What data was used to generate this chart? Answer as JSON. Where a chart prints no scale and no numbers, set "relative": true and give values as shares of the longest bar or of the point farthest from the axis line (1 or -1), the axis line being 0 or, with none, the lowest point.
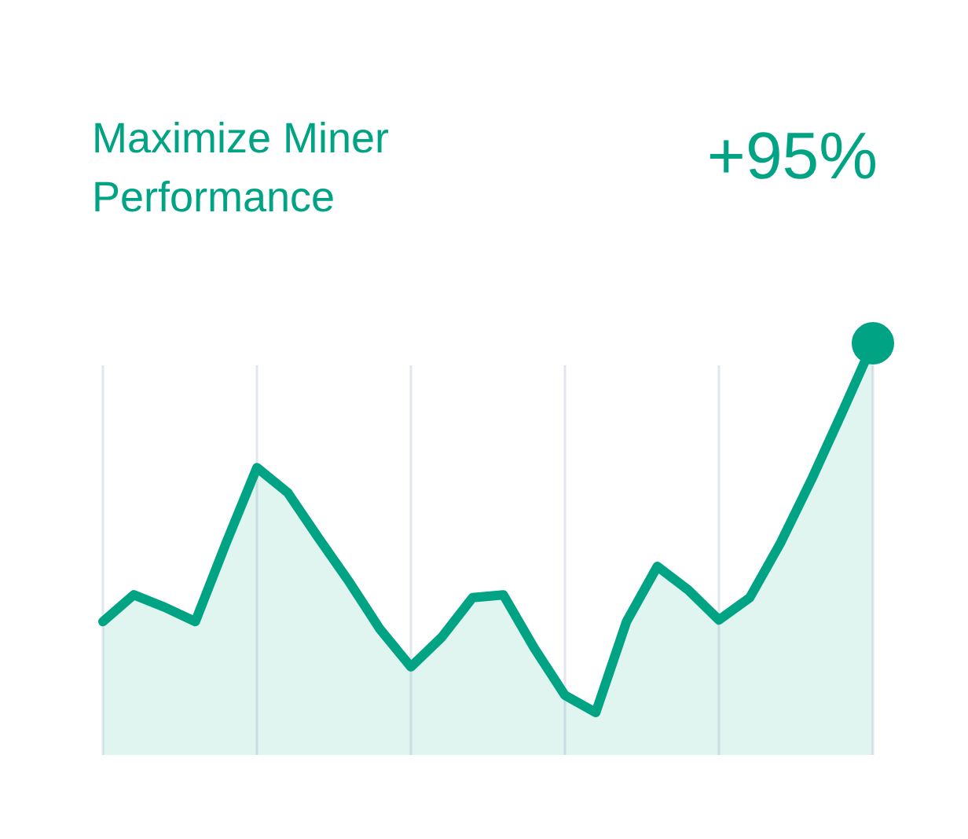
{
  "chart_data": {
    "type": "area",
    "relative": true,
    "title": "Maximize Miner Performance",
    "annotations": [
      "+95%"
    ],
    "grid": "x",
    "categories": [
      null,
      null,
      null,
      null,
      null,
      null,
      null,
      null,
      null,
      null,
      null,
      null,
      null,
      null,
      null,
      null,
      null,
      null,
      null,
      null,
      null,
      null,
      null,
      null,
      null,
      null
    ],
    "series": [
      {
        "color": "#00a383",
        "values": [
          0.324,
          0.389,
          0.359,
          0.324,
          0.515,
          0.698,
          0.637,
          0.527,
          0.42,
          0.305,
          0.214,
          0.286,
          0.382,
          0.389,
          0.26,
          0.145,
          0.103,
          0.324,
          0.458,
          0.401,
          0.328,
          0.382,
          0.515,
          0.668,
          0.832,
          1
        ]
      }
    ]
  }
}
